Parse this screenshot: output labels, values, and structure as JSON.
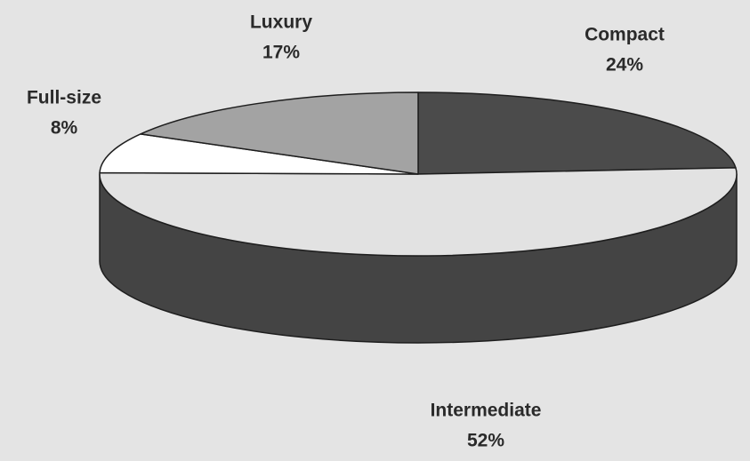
{
  "chart_data": {
    "type": "pie",
    "categories": [
      "Compact",
      "Intermediate",
      "Full-size",
      "Luxury"
    ],
    "values": [
      24,
      52,
      8,
      17
    ],
    "value_labels": [
      "24%",
      "52%",
      "8%",
      "17%"
    ],
    "colors": [
      "#4b4b4b",
      "#e2e2e2",
      "#ffffff",
      "#a3a3a3"
    ]
  }
}
